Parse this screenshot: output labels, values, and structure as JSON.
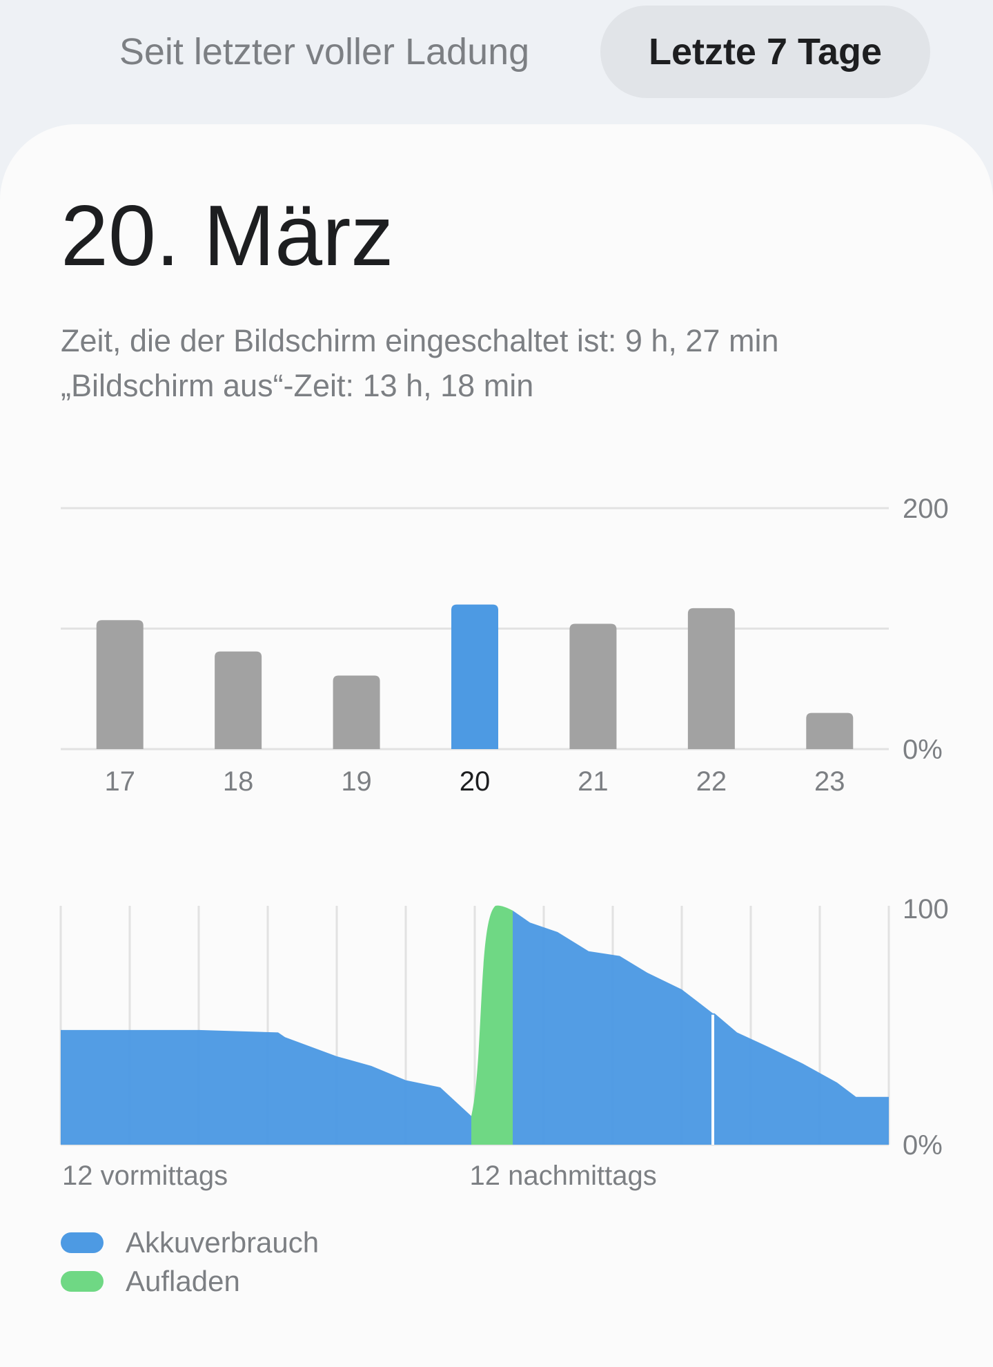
{
  "tabs": {
    "since_full_charge": "Seit letzter voller Ladung",
    "last_7_days": "Letzte 7 Tage"
  },
  "selected_date": "20. März",
  "screen_on_text": "Zeit, die der Bildschirm eingeschaltet ist: 9 h, 27 min",
  "screen_off_text": "„Bildschirm aus“-Zeit: 13 h, 18 min",
  "colors": {
    "usage": "#4d9ae3",
    "charging": "#6fd884",
    "bar_inactive": "#a2a2a2",
    "grid": "#e2e2e2"
  },
  "chart_data": [
    {
      "type": "bar",
      "categories": [
        "17",
        "18",
        "19",
        "20",
        "21",
        "22",
        "23"
      ],
      "values": [
        107,
        81,
        61,
        120,
        104,
        117,
        30
      ],
      "selected_category": "20",
      "ylim": [
        0,
        200
      ],
      "y_tick_labels": {
        "top": "200",
        "bottom": "0%"
      },
      "gridlines": [
        0,
        100,
        200
      ]
    },
    {
      "type": "area",
      "ylim": [
        0,
        100
      ],
      "y_tick_labels": {
        "top": "100",
        "bottom": "0%"
      },
      "x_labels": [
        "12 vormittags",
        "12 nachmittags"
      ],
      "xlim": [
        0,
        24
      ],
      "series": [
        {
          "name": "Akkuverbrauch",
          "color": "#4d9ae3",
          "segments": [
            {
              "x": [
                0,
                2,
                4,
                6,
                8,
                10,
                12.75,
                14,
                16,
                18.75,
                21,
                23,
                24
              ],
              "y": [
                48,
                48,
                48,
                47,
                35,
                23,
                8,
                3,
                0,
                0,
                0,
                0,
                0
              ]
            }
          ]
        }
      ],
      "usage_points": {
        "x": [
          0,
          1,
          2,
          3,
          3.2,
          4,
          5,
          6,
          7,
          7.6,
          8,
          9,
          9.5,
          10,
          11,
          11.6,
          12,
          12.6,
          13.1,
          14,
          15,
          16,
          17,
          18,
          18.9,
          19,
          20,
          21,
          22,
          23,
          23.05,
          24
        ],
        "y": [
          48,
          48,
          48,
          47.5,
          47,
          43,
          37,
          31,
          23,
          19,
          17,
          12,
          9,
          8,
          6,
          5,
          3,
          1,
          0,
          0,
          0,
          0,
          0,
          0,
          0,
          0,
          0,
          0,
          0,
          0,
          0,
          0
        ]
      },
      "battery_level": {
        "x": [
          0,
          2,
          4,
          6.3,
          6.5,
          8,
          9,
          10,
          11,
          11.9,
          12.6,
          13.1,
          13.6,
          14.4,
          15.3,
          16.2,
          17.0,
          18.0,
          18.9,
          18.95,
          19.6,
          20.5,
          21.5,
          22.5,
          23.05,
          24
        ],
        "y": [
          48,
          48,
          48,
          47,
          45,
          37,
          33,
          27,
          24,
          12,
          100,
          98,
          93,
          89,
          81,
          79,
          72,
          65,
          55,
          55,
          47,
          41,
          34,
          26,
          20,
          20
        ]
      },
      "charging_segment": {
        "x_start": 11.9,
        "x_end": 13.1
      },
      "gap_marker_x": 18.9
    }
  ],
  "legend": [
    {
      "label": "Akkuverbrauch",
      "color": "#4d9ae3"
    },
    {
      "label": "Aufladen",
      "color": "#6fd884"
    }
  ]
}
